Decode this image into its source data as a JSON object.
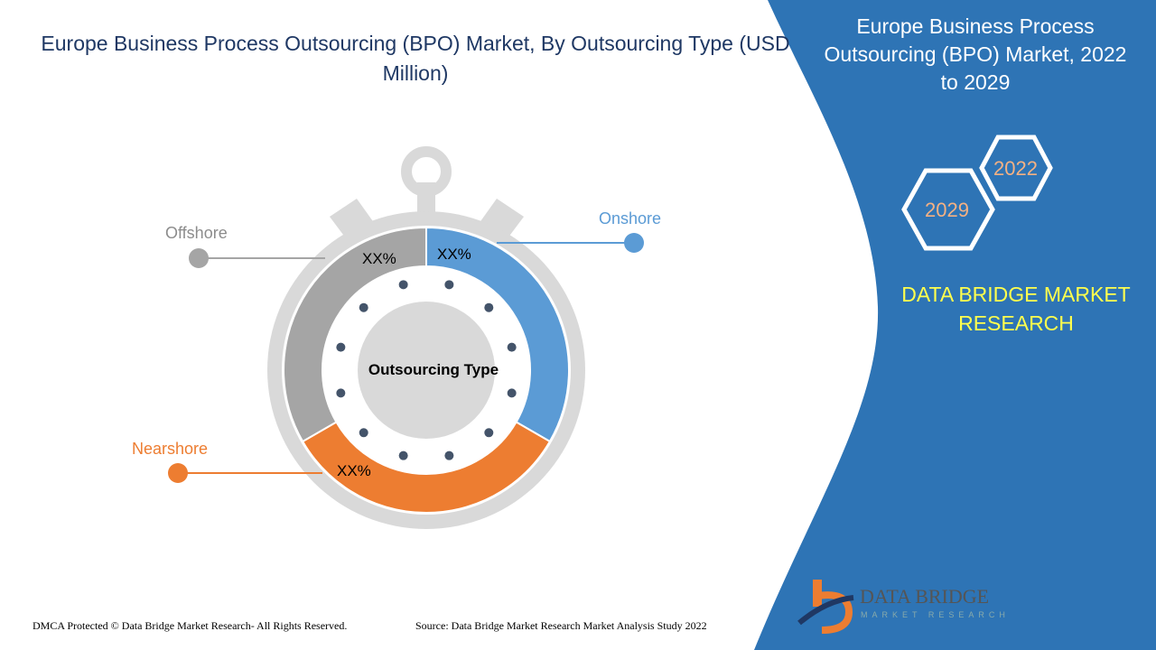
{
  "title": "Europe Business Process Outsourcing (BPO) Market, By Outsourcing Type (USD Million)",
  "right_panel": {
    "title": "Europe Business Process Outsourcing (BPO) Market, 2022 to 2029",
    "years": [
      "2022",
      "2029"
    ],
    "brand": "DATA BRIDGE MARKET RESEARCH",
    "logo_text": "DATA BRIDGE",
    "logo_subtext": "MARKET RESEARCH"
  },
  "colors": {
    "onshore": "#5b9bd5",
    "nearshore": "#ed7d31",
    "offshore": "#a5a5a5",
    "panel": "#2e74b5",
    "title": "#1f3864"
  },
  "chart_data": {
    "type": "pie",
    "variant": "donut",
    "title": "Europe Business Process Outsourcing (BPO) Market, By Outsourcing Type (USD Million)",
    "center_label": "Outsourcing Type",
    "slices": [
      {
        "name": "Onshore",
        "label": "XX%",
        "share": 33.3,
        "color": "#5b9bd5"
      },
      {
        "name": "Nearshore",
        "label": "XX%",
        "share": 33.3,
        "color": "#ed7d31"
      },
      {
        "name": "Offshore",
        "label": "XX%",
        "share": 33.3,
        "color": "#a5a5a5"
      }
    ]
  },
  "footer": {
    "copyright": "DMCA Protected © Data Bridge Market Research- All Rights Reserved.",
    "source": "Source: Data Bridge Market Research Market Analysis Study 2022"
  }
}
